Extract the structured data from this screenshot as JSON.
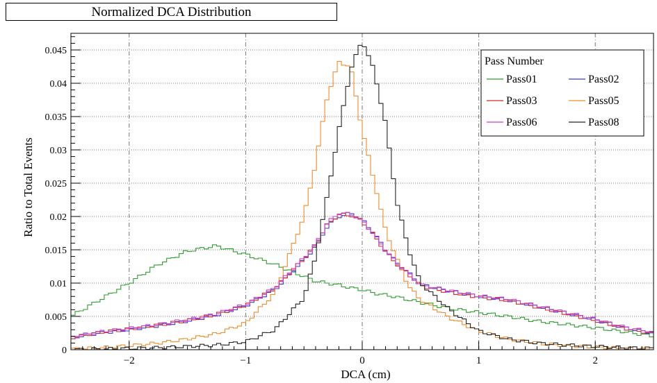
{
  "chart_data": {
    "type": "line",
    "title": "Normalized DCA Distribution",
    "xlabel": "DCA (cm)",
    "ylabel": "Ratio to Total Events",
    "xlim": [
      -2.5,
      2.5
    ],
    "ylim": [
      0,
      0.0475
    ],
    "grid": true,
    "x_ticks": [
      -2,
      -1,
      0,
      1,
      2
    ],
    "y_ticks": [
      0,
      0.005,
      0.01,
      0.015,
      0.02,
      0.025,
      0.03,
      0.035,
      0.04,
      0.045
    ],
    "x_tick_labels": [
      "−2",
      "−1",
      "0",
      "1",
      "2"
    ],
    "y_tick_labels": [
      "0",
      "0.005",
      "0.01",
      "0.015",
      "0.02",
      "0.025",
      "0.03",
      "0.035",
      "0.04",
      "0.045"
    ],
    "legend": {
      "title": "Pass Number",
      "position": "top-right"
    },
    "x": [
      -2.5,
      -2.25,
      -2.0,
      -1.75,
      -1.5,
      -1.25,
      -1.0,
      -0.75,
      -0.5,
      -0.4,
      -0.3,
      -0.2,
      -0.1,
      0.0,
      0.1,
      0.2,
      0.3,
      0.4,
      0.5,
      0.75,
      1.0,
      1.25,
      1.5,
      1.75,
      2.0,
      2.25,
      2.5
    ],
    "series": [
      {
        "name": "Pass01",
        "color": "#2e9d2e",
        "values": [
          0.005,
          0.0075,
          0.01,
          0.0128,
          0.0148,
          0.0156,
          0.0143,
          0.0128,
          0.011,
          0.0103,
          0.01,
          0.0097,
          0.0093,
          0.009,
          0.0085,
          0.0082,
          0.0079,
          0.0075,
          0.0071,
          0.0062,
          0.0056,
          0.005,
          0.0043,
          0.0038,
          0.0033,
          0.0027,
          0.002
        ]
      },
      {
        "name": "Pass02",
        "color": "#3a3ad0",
        "values": [
          0.0018,
          0.0025,
          0.003,
          0.0036,
          0.0043,
          0.0052,
          0.0066,
          0.009,
          0.0135,
          0.0155,
          0.0185,
          0.02,
          0.0205,
          0.0195,
          0.0175,
          0.015,
          0.013,
          0.0115,
          0.0098,
          0.0088,
          0.008,
          0.0075,
          0.0065,
          0.0055,
          0.0045,
          0.0033,
          0.0025
        ]
      },
      {
        "name": "Pass03",
        "color": "#d42a2a",
        "values": [
          0.0018,
          0.0026,
          0.0031,
          0.0037,
          0.0044,
          0.0053,
          0.0067,
          0.0092,
          0.0137,
          0.0157,
          0.0188,
          0.0203,
          0.0202,
          0.0193,
          0.0172,
          0.0148,
          0.0128,
          0.0113,
          0.0096,
          0.0086,
          0.0079,
          0.0074,
          0.0064,
          0.0054,
          0.0044,
          0.0032,
          0.0024
        ]
      },
      {
        "name": "Pass05",
        "color": "#f08c2a",
        "values": [
          0.0001,
          0.0003,
          0.0006,
          0.001,
          0.0016,
          0.0024,
          0.004,
          0.0085,
          0.02,
          0.028,
          0.038,
          0.0432,
          0.0425,
          0.033,
          0.0255,
          0.018,
          0.0135,
          0.0095,
          0.0075,
          0.0048,
          0.0028,
          0.0016,
          0.001,
          0.0006,
          0.0004,
          0.0002,
          0.0001
        ]
      },
      {
        "name": "Pass06",
        "color": "#cc3ecc",
        "values": [
          0.0019,
          0.0027,
          0.0032,
          0.0038,
          0.0045,
          0.0054,
          0.0068,
          0.0093,
          0.0138,
          0.0158,
          0.019,
          0.0205,
          0.0204,
          0.0194,
          0.0173,
          0.0149,
          0.0129,
          0.0114,
          0.0097,
          0.0089,
          0.0081,
          0.0076,
          0.0066,
          0.0056,
          0.0046,
          0.0034,
          0.0026
        ]
      },
      {
        "name": "Pass08",
        "color": "#222222",
        "values": [
          0.0,
          0.0001,
          0.0002,
          0.0003,
          0.0005,
          0.0007,
          0.0012,
          0.003,
          0.0078,
          0.014,
          0.023,
          0.033,
          0.042,
          0.0465,
          0.042,
          0.034,
          0.022,
          0.015,
          0.01,
          0.006,
          0.0028,
          0.0016,
          0.001,
          0.0007,
          0.0005,
          0.0003,
          0.0002
        ]
      }
    ]
  }
}
